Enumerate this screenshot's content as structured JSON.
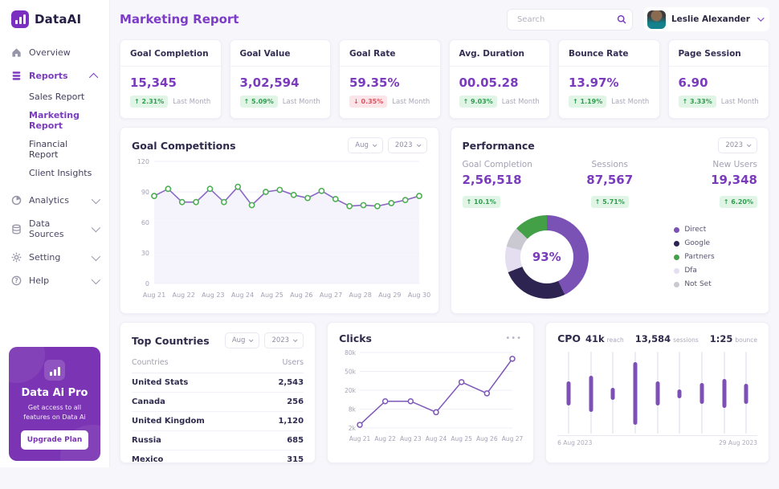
{
  "app": {
    "name": "DataAI"
  },
  "sidebar": {
    "logo_text": "DataAI",
    "items": [
      {
        "label": "Overview",
        "icon": "home-icon"
      },
      {
        "label": "Reports",
        "icon": "reports-icon",
        "expanded": true,
        "active": true
      },
      {
        "label": "Analytics",
        "icon": "analytics-icon"
      },
      {
        "label": "Data Sources",
        "icon": "database-icon"
      },
      {
        "label": "Setting",
        "icon": "gear-icon"
      },
      {
        "label": "Help",
        "icon": "help-icon"
      }
    ],
    "report_children": [
      "Sales Report",
      "Marketing Report",
      "Financial Report",
      "Client Insights"
    ],
    "active_child": "Marketing Report",
    "promo": {
      "title": "Data Ai Pro",
      "subtitle": "Get access to all features on Data Ai",
      "button": "Upgrade Plan"
    }
  },
  "header": {
    "title": "Marketing Report",
    "search_placeholder": "Search",
    "user_name": "Leslie Alexander"
  },
  "stats": [
    {
      "label": "Goal Completion",
      "value": "15,345",
      "arrow": "↑",
      "change": "2.31%",
      "direction": "up",
      "period": "Last Month"
    },
    {
      "label": "Goal Value",
      "value": "3,02,594",
      "arrow": "↑",
      "change": "5.09%",
      "direction": "up",
      "period": "Last Month"
    },
    {
      "label": "Goal Rate",
      "value": "59.35%",
      "arrow": "↓",
      "change": "0.35%",
      "direction": "down",
      "period": "Last Month"
    },
    {
      "label": "Avg. Duration",
      "value": "00.05.28",
      "arrow": "↑",
      "change": "9.03%",
      "direction": "up",
      "period": "Last Month"
    },
    {
      "label": "Bounce Rate",
      "value": "13.97%",
      "arrow": "↑",
      "change": "1.19%",
      "direction": "up",
      "period": "Last Month"
    },
    {
      "label": "Page Session",
      "value": "6.90",
      "arrow": "↑",
      "change": "3.33%",
      "direction": "up",
      "period": "Last Month"
    }
  ],
  "cards": {
    "goal_competitions": {
      "title": "Goal Competitions",
      "month_filter": "Aug",
      "year_filter": "2023"
    },
    "performance": {
      "title": "Performance",
      "year_filter": "2023",
      "metrics": [
        {
          "label": "Goal Completion",
          "value": "2,56,518",
          "arrow": "↑",
          "change": "10.1%"
        },
        {
          "label": "Sessions",
          "value": "87,567",
          "arrow": "↑",
          "change": "5.71%"
        },
        {
          "label": "New Users",
          "value": "19,348",
          "arrow": "↑",
          "change": "6.20%"
        }
      ]
    },
    "top_countries": {
      "title": "Top Countries",
      "month_filter": "Aug",
      "year_filter": "2023",
      "columns": [
        "Countries",
        "Users"
      ],
      "rows": [
        [
          "United Stats",
          "2,543"
        ],
        [
          "Canada",
          "256"
        ],
        [
          "United Kingdom",
          "1,120"
        ],
        [
          "Russia",
          "685"
        ],
        [
          "Mexico",
          "315"
        ]
      ]
    },
    "clicks": {
      "title": "Clicks",
      "menu": "•••"
    },
    "cpo": {
      "title": "CPO",
      "stats": [
        {
          "value": "41k",
          "label": "reach"
        },
        {
          "value": "13,584",
          "label": "sessions"
        },
        {
          "value": "1:25",
          "label": "bounce"
        }
      ]
    }
  },
  "chart_data": [
    {
      "id": "goal_competitions",
      "type": "line",
      "title": "Goal Competitions",
      "x_labels": [
        "Aug 21",
        "Aug 22",
        "Aug 23",
        "Aug 24",
        "Aug 25",
        "Aug 26",
        "Aug 27",
        "Aug 28",
        "Aug 29",
        "Aug 30"
      ],
      "y_ticks": [
        0,
        30,
        60,
        90,
        120
      ],
      "ylim": [
        0,
        120
      ],
      "values": [
        86,
        93,
        80,
        80,
        93,
        80,
        95,
        77,
        90,
        92,
        87,
        84,
        91,
        83,
        76,
        77,
        76,
        79,
        82,
        86
      ],
      "line_color": "#8a68c6",
      "marker_color": "#4db052",
      "area_color": "#f3f0fa"
    },
    {
      "id": "performance_donut",
      "type": "pie",
      "center_label": "93%",
      "segments": [
        {
          "label": "Direct",
          "value": 43,
          "color": "#7a52b5"
        },
        {
          "label": "Google",
          "value": 26,
          "color": "#2e2452"
        },
        {
          "label": "Dfa",
          "value": 10,
          "color": "#e5def1"
        },
        {
          "label": "Not Set",
          "value": 8,
          "color": "#cac9d2"
        },
        {
          "label": "Partners",
          "value": 13,
          "color": "#43a047"
        }
      ],
      "legend": [
        {
          "label": "Direct",
          "color": "#7a52b5"
        },
        {
          "label": "Google",
          "color": "#2e2452"
        },
        {
          "label": "Partners",
          "color": "#43a047"
        },
        {
          "label": "Dfa",
          "color": "#e5def1"
        },
        {
          "label": "Not Set",
          "color": "#cac9d2"
        }
      ]
    },
    {
      "id": "clicks",
      "type": "line",
      "title": "Clicks",
      "x_labels": [
        "Aug 21",
        "Aug 22",
        "Aug 23",
        "Aug 24",
        "Aug 25",
        "Aug 26",
        "Aug 27"
      ],
      "y_ticks": [
        "80k",
        "50k",
        "20k",
        "8k",
        "2k"
      ],
      "y_tick_values": [
        80,
        50,
        20,
        8,
        2
      ],
      "values_thousands": [
        3,
        13,
        13,
        7,
        33,
        18,
        70
      ],
      "line_color": "#7e57b8",
      "marker_color": "#7e57b8"
    },
    {
      "id": "cpo",
      "type": "range-bar",
      "title": "CPO",
      "x_start": "6 Aug 2023",
      "x_end": "29 Aug 2023",
      "bars": [
        {
          "top": 36,
          "bottom": 66
        },
        {
          "top": 29,
          "bottom": 74
        },
        {
          "top": 44,
          "bottom": 59
        },
        {
          "top": 13,
          "bottom": 89
        },
        {
          "top": 36,
          "bottom": 66
        },
        {
          "top": 46,
          "bottom": 57
        },
        {
          "top": 38,
          "bottom": 64
        },
        {
          "top": 33,
          "bottom": 69
        },
        {
          "top": 39,
          "bottom": 64
        }
      ],
      "bar_color": "#7e4fb5",
      "track_color": "#edebf6"
    }
  ],
  "colors": {
    "accent": "#7a3bbd",
    "title_purple": "#7d3cc8",
    "dark_text": "#2e2a4a",
    "badge_up_bg": "#e1f5e7",
    "badge_up_text": "#2f9e4f",
    "badge_down_bg": "#fbe5e8",
    "badge_down_text": "#df5060",
    "promo_bg": "#7b34b4"
  }
}
